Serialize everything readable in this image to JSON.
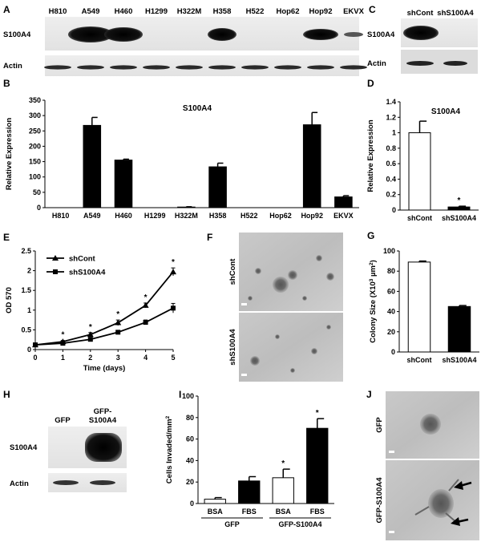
{
  "panels": {
    "A": {
      "letter": "A",
      "lanes": [
        "H810",
        "A549",
        "H460",
        "H1299",
        "H322M",
        "H358",
        "H522",
        "Hop62",
        "Hop92",
        "EKVX"
      ],
      "rows": [
        "S100A4",
        "Actin"
      ]
    },
    "C": {
      "letter": "C",
      "lanes": [
        "shCont",
        "shS100A4"
      ],
      "rows": [
        "S100A4",
        "Actin"
      ]
    },
    "F": {
      "letter": "F",
      "image_labels": [
        "shCont",
        "shS100A4"
      ]
    },
    "H": {
      "letter": "H",
      "lanes": [
        "GFP",
        "GFP-\nS100A4"
      ],
      "lane_lines": [
        [
          "GFP"
        ],
        [
          "GFP-",
          "S100A4"
        ]
      ],
      "rows": [
        "S100A4",
        "Actin"
      ]
    },
    "J": {
      "letter": "J",
      "image_labels": [
        "GFP",
        "GFP-S100A4"
      ]
    }
  },
  "chart_data": [
    {
      "id": "B",
      "letter": "B",
      "type": "bar",
      "title": "S100A4",
      "ylabel": "Relative Expression",
      "categories": [
        "H810",
        "A549",
        "H460",
        "H1299",
        "H322M",
        "H358",
        "H522",
        "Hop62",
        "Hop92",
        "EKVX"
      ],
      "values": [
        0,
        268,
        155,
        0,
        2,
        133,
        0,
        0,
        270,
        35
      ],
      "errors": [
        0,
        26,
        3,
        0,
        1,
        12,
        0,
        0,
        40,
        4
      ],
      "ylim": [
        0,
        350
      ],
      "yticks": [
        0,
        50,
        100,
        150,
        200,
        250,
        300,
        350
      ],
      "bar_color": "#000000"
    },
    {
      "id": "D",
      "letter": "D",
      "type": "bar",
      "title": "S100A4",
      "ylabel": "Relative Expression",
      "categories": [
        "shCont",
        "shS100A4"
      ],
      "values": [
        1.0,
        0.04
      ],
      "errors": [
        0.15,
        0.01
      ],
      "fills": [
        "#ffffff",
        "#000000"
      ],
      "ylim": [
        0,
        1.4
      ],
      "yticks": [
        0,
        0.2,
        0.4,
        0.6,
        0.8,
        1,
        1.2,
        1.4
      ],
      "ytick_labels": [
        "0",
        "0.2",
        "0.4",
        "0.6",
        "0.8",
        "1",
        "1.2",
        "1.4"
      ],
      "annotations": [
        {
          "category": "shS100A4",
          "text": "*"
        }
      ]
    },
    {
      "id": "E",
      "letter": "E",
      "type": "line",
      "xlabel": "Time (days)",
      "ylabel": "OD 570",
      "x": [
        0,
        1,
        2,
        3,
        4,
        5
      ],
      "xlim": [
        0,
        5
      ],
      "xticks": [
        0,
        1,
        2,
        3,
        4,
        5
      ],
      "ylim": [
        0,
        2.5
      ],
      "yticks": [
        0,
        0.5,
        1,
        1.5,
        2,
        2.5
      ],
      "ytick_labels": [
        "0",
        "0.5",
        "1",
        "1.5",
        "2",
        "2.5"
      ],
      "series": [
        {
          "name": "shCont",
          "marker": "triangle",
          "values": [
            0.12,
            0.2,
            0.38,
            0.68,
            1.12,
            1.97
          ],
          "errors": [
            0.02,
            0.03,
            0.05,
            0.07,
            0.06,
            0.1
          ]
        },
        {
          "name": "shS100A4",
          "marker": "square",
          "values": [
            0.12,
            0.16,
            0.26,
            0.44,
            0.69,
            1.05
          ],
          "errors": [
            0.02,
            0.02,
            0.03,
            0.04,
            0.06,
            0.12
          ]
        }
      ],
      "annotations": [
        {
          "x": 1,
          "text": "*"
        },
        {
          "x": 2,
          "text": "*"
        },
        {
          "x": 3,
          "text": "*"
        },
        {
          "x": 4,
          "text": "*"
        },
        {
          "x": 5,
          "text": "*"
        }
      ]
    },
    {
      "id": "G",
      "letter": "G",
      "type": "bar",
      "ylabel": "Colony Size (X10³ µm²)",
      "ylabel_parts": [
        "Colony Size (X10",
        "3",
        " µm",
        "2",
        ")"
      ],
      "categories": [
        "shCont",
        "shS100A4"
      ],
      "values": [
        89,
        45
      ],
      "errors": [
        1,
        1
      ],
      "fills": [
        "#ffffff",
        "#000000"
      ],
      "ylim": [
        0,
        100
      ],
      "yticks": [
        0,
        20,
        40,
        60,
        80,
        100
      ]
    },
    {
      "id": "I",
      "letter": "I",
      "type": "bar",
      "ylabel": "Cells Invaded/mm²",
      "ylabel_parts": [
        "Cells Invaded/mm",
        "2",
        "",
        "",
        ""
      ],
      "categories": [
        "BSA",
        "FBS",
        "BSA",
        "FBS"
      ],
      "groups": [
        {
          "name": "GFP",
          "span": [
            0,
            1
          ]
        },
        {
          "name": "GFP-S100A4",
          "span": [
            2,
            3
          ]
        }
      ],
      "values": [
        4,
        21,
        24,
        70
      ],
      "errors": [
        1.5,
        4,
        8,
        9
      ],
      "fills": [
        "#ffffff",
        "#000000",
        "#ffffff",
        "#000000"
      ],
      "ylim": [
        0,
        100
      ],
      "yticks": [
        0,
        20,
        40,
        60,
        80,
        100
      ],
      "annotations": [
        {
          "index": 2,
          "text": "*"
        },
        {
          "index": 3,
          "text": "*"
        }
      ]
    }
  ]
}
